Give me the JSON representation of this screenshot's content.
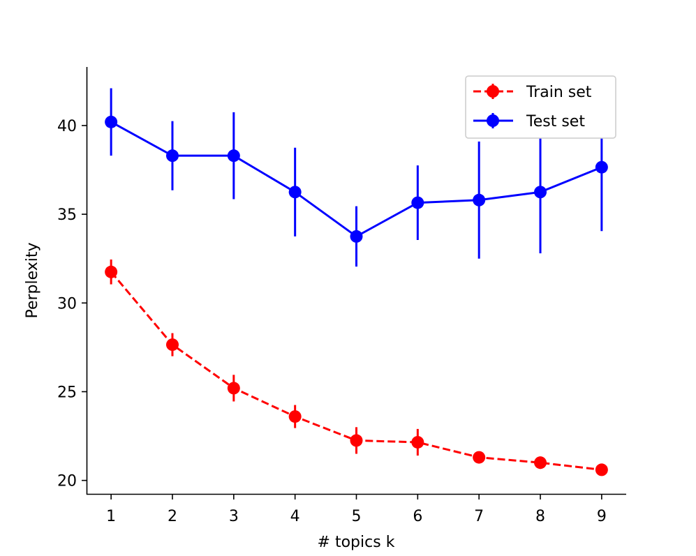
{
  "chart_data": {
    "type": "line",
    "title": "",
    "xlabel": "# topics k",
    "ylabel": "Perplexity",
    "x": [
      1,
      2,
      3,
      4,
      5,
      6,
      7,
      8,
      9
    ],
    "xticks": [
      "1",
      "2",
      "3",
      "4",
      "5",
      "6",
      "7",
      "8",
      "9"
    ],
    "yticks": [
      "20",
      "25",
      "30",
      "35",
      "40"
    ],
    "xlim": [
      0.6,
      9.4
    ],
    "ylim": [
      19.2,
      43.3
    ],
    "grid": false,
    "legend_position": "top-right",
    "series": [
      {
        "name": "Train set",
        "color": "#ff0000",
        "line_style": "dashed",
        "marker": "circle",
        "values": [
          31.75,
          27.65,
          25.2,
          23.6,
          22.25,
          22.15,
          21.3,
          21.0,
          20.6
        ],
        "errors": [
          0.7,
          0.65,
          0.75,
          0.65,
          0.75,
          0.75,
          0.3,
          0.35,
          0.25
        ]
      },
      {
        "name": "Test set",
        "color": "#0000ff",
        "line_style": "solid",
        "marker": "circle",
        "values": [
          40.2,
          38.3,
          38.3,
          36.25,
          33.75,
          35.65,
          35.8,
          36.25,
          37.65
        ],
        "errors": [
          1.9,
          1.95,
          2.45,
          2.5,
          1.7,
          2.1,
          3.3,
          3.45,
          3.6
        ]
      }
    ]
  }
}
